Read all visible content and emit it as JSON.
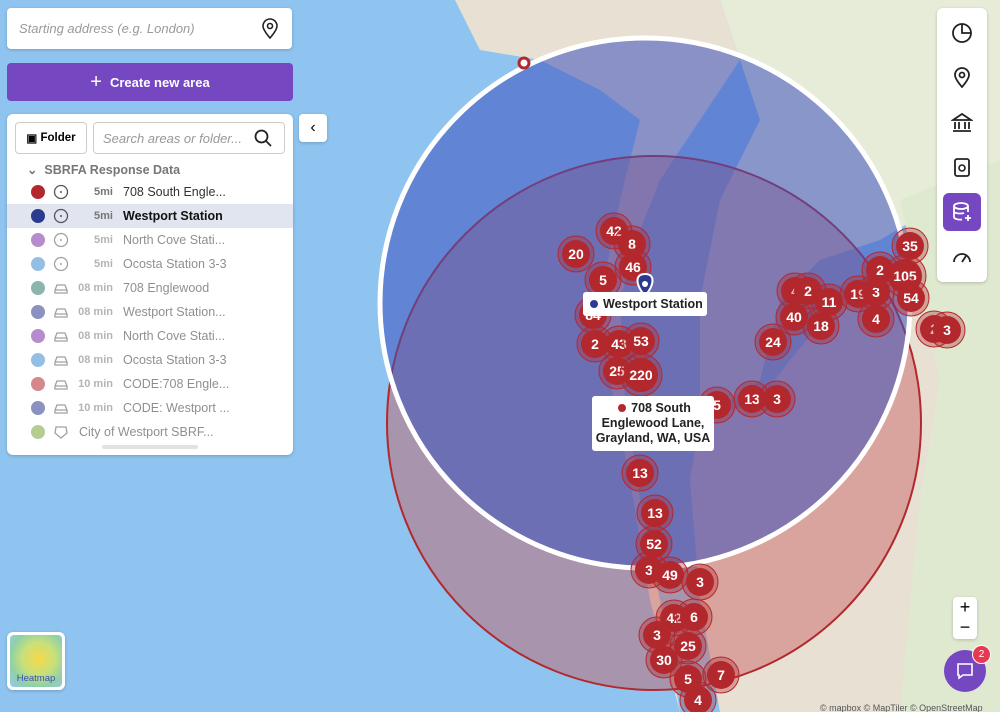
{
  "search": {
    "placeholder": "Starting address (e.g. London)"
  },
  "create_button": "Create new area",
  "panel": {
    "folder_button": "Folder",
    "search_placeholder": "Search areas or folder...",
    "group_title": "SBRFA Response Data",
    "items": [
      {
        "color": "#b3282d",
        "time": "5mi",
        "name": "708 South Engle..."
      },
      {
        "color": "#2b3a8f",
        "time": "5mi",
        "name": "Westport Station"
      },
      {
        "color": "#7d2fa6",
        "time": "5mi",
        "name": "North Cove Stati..."
      },
      {
        "color": "#3b8bd0",
        "time": "5mi",
        "name": "Ocosta Station 3-3"
      },
      {
        "color": "#2e7a6d",
        "time": "08 min",
        "name": "708 Englewood"
      },
      {
        "color": "#2b3a8f",
        "time": "08 min",
        "name": "Westport Station..."
      },
      {
        "color": "#7d2fa6",
        "time": "08 min",
        "name": "North Cove Stati..."
      },
      {
        "color": "#3b8bd0",
        "time": "08 min",
        "name": "Ocosta Station 3-3"
      },
      {
        "color": "#b3282d",
        "time": "10 min",
        "name": "CODE:708 Engle..."
      },
      {
        "color": "#2b3a8f",
        "time": "10 min",
        "name": "CODE: Westport ..."
      },
      {
        "color": "#7aa33a",
        "name": "City of Westport SBRF..."
      }
    ]
  },
  "map": {
    "popups": [
      "Westport Station",
      "708 South Englewood Lane, Grayland, WA, USA"
    ],
    "clusters": [
      42,
      8,
      20,
      5,
      46,
      84,
      2,
      43,
      53,
      25,
      220,
      5,
      13,
      3,
      13,
      13,
      52,
      3,
      49,
      3,
      42,
      6,
      3,
      25,
      30,
      5,
      7,
      4,
      24,
      40,
      18,
      4,
      2,
      11,
      19,
      3,
      2,
      105,
      35,
      54,
      4,
      2,
      3
    ],
    "heatmap_label": "Heatmap",
    "chat_badge": "2",
    "attribution": "© mapbox © MapTiler © OpenStreetMap"
  }
}
